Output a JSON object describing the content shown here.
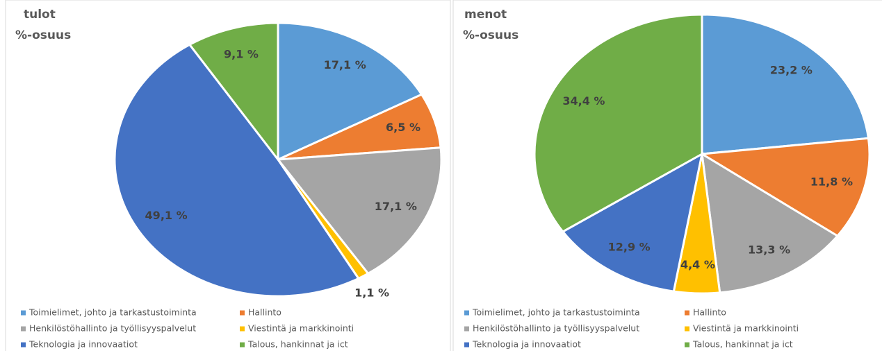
{
  "chart_data": [
    {
      "type": "pie",
      "title": "tulot",
      "subtitle": "%-osuus",
      "categories": [
        "Toimielimet, johto ja tarkastustoiminta",
        "Hallinto",
        "Henkilöstöhallinto ja työllisyyspalvelut",
        "Viestintä ja markkinointi",
        "Teknologia ja innovaatiot",
        "Talous, hankinnat ja ict"
      ],
      "values": [
        17.1,
        6.5,
        17.1,
        1.1,
        49.1,
        9.1
      ],
      "value_labels": [
        "17,1 %",
        "6,5 %",
        "17,1 %",
        "1,1 %",
        "49,1 %",
        "9,1 %"
      ],
      "colors": [
        "#5b9bd5",
        "#ed7d31",
        "#a5a5a5",
        "#ffc000",
        "#4472c4",
        "#70ad47"
      ]
    },
    {
      "type": "pie",
      "title": "menot",
      "subtitle": "%-osuus",
      "categories": [
        "Toimielimet, johto ja tarkastustoiminta",
        "Hallinto",
        "Henkilöstöhallinto ja työllisyyspalvelut",
        "Viestintä ja markkinointi",
        "Teknologia ja innovaatiot",
        "Talous, hankinnat ja ict"
      ],
      "values": [
        23.2,
        11.8,
        13.3,
        4.4,
        12.9,
        34.4
      ],
      "value_labels": [
        "23,2 %",
        "11,8 %",
        "13,3 %",
        "4,4 %",
        "12,9 %",
        "34,4 %"
      ],
      "colors": [
        "#5b9bd5",
        "#ed7d31",
        "#a5a5a5",
        "#ffc000",
        "#4472c4",
        "#70ad47"
      ]
    }
  ]
}
